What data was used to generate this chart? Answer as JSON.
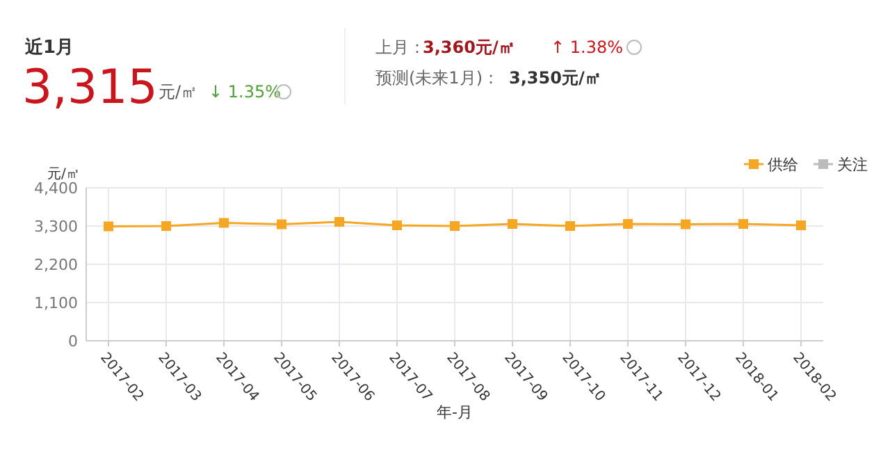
{
  "chart_data": [
    {
      "type": "other",
      "annotations": [
        "近1月",
        "3,315",
        "元/㎡",
        "↓ 1.35%",
        "上月：",
        "3,360元/㎡",
        "↑ 1.38%",
        "预测(未来1月)：",
        "3,350元/㎡"
      ]
    },
    {
      "type": "line",
      "xlabel": "年-月",
      "ylabel": "元/㎡",
      "categories": [
        "2017-02",
        "2017-03",
        "2017-04",
        "2017-05",
        "2017-06",
        "2017-07",
        "2017-08",
        "2017-09",
        "2017-10",
        "2017-11",
        "2017-12",
        "2018-01",
        "2018-02"
      ],
      "series": [
        {
          "name": "供给",
          "color": "#f5a623",
          "values": [
            3290,
            3300,
            3390,
            3350,
            3420,
            3320,
            3300,
            3360,
            3300,
            3360,
            3350,
            3360,
            3320
          ]
        },
        {
          "name": "关注",
          "color": "#bbbbbb",
          "values": [
            null,
            null,
            null,
            null,
            null,
            null,
            null,
            null,
            null,
            null,
            null,
            null,
            null
          ]
        }
      ],
      "ylim": [
        0,
        4400
      ],
      "yticks": [
        {
          "value": 0,
          "label": "0"
        },
        {
          "value": 1100,
          "label": "1,100"
        },
        {
          "value": 2200,
          "label": "2,200"
        },
        {
          "value": 3300,
          "label": "3,300"
        },
        {
          "value": 4400,
          "label": "4,400"
        }
      ],
      "grid": true,
      "legend": "top right",
      "marker": "square",
      "line_style": "solid"
    }
  ]
}
